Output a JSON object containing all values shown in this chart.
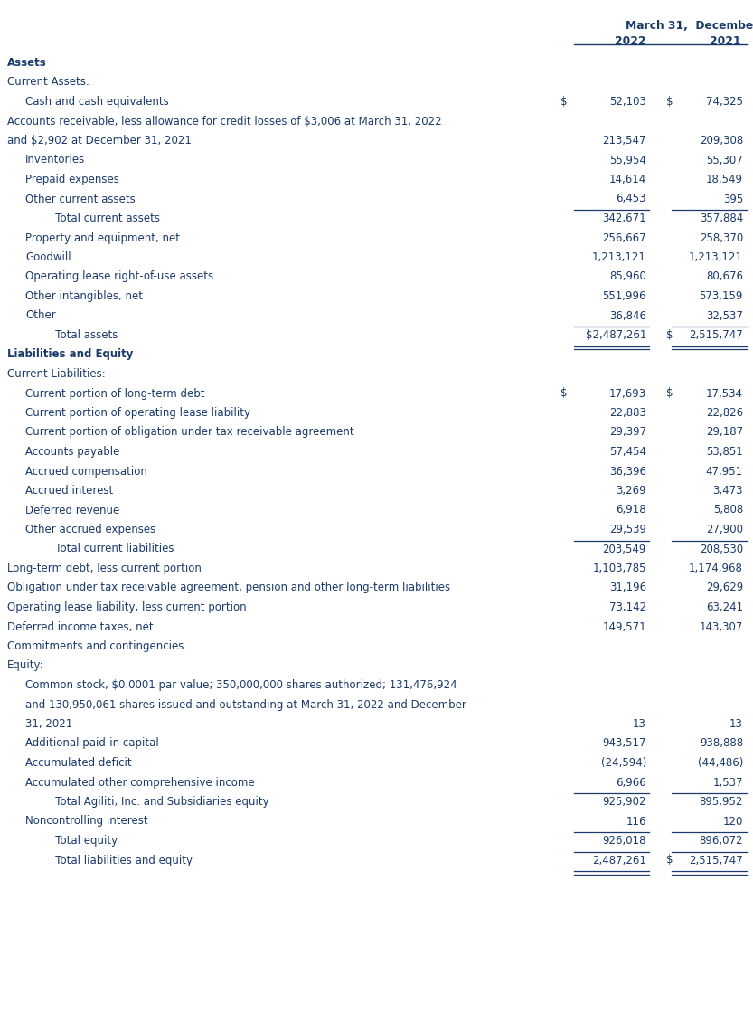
{
  "bg_color": "#ffffff",
  "text_color": "#1a3a6b",
  "font_family": "DejaVu Sans",
  "rows": [
    {
      "text": "Assets",
      "indent": 0,
      "bold": true,
      "val1": "",
      "val2": "",
      "dollar1": false,
      "dollar2": false,
      "underline": false,
      "double_underline": false
    },
    {
      "text": "Current Assets:",
      "indent": 0,
      "bold": false,
      "val1": "",
      "val2": "",
      "dollar1": false,
      "dollar2": false,
      "underline": false,
      "double_underline": false
    },
    {
      "text": "Cash and cash equivalents",
      "indent": 1,
      "bold": false,
      "val1": "52,103",
      "val2": "74,325",
      "dollar1": true,
      "dollar2": true,
      "underline": false,
      "double_underline": false
    },
    {
      "text": "Accounts receivable, less allowance for credit losses of $3,006 at March 31, 2022",
      "indent": 0,
      "bold": false,
      "val1": "",
      "val2": "",
      "dollar1": false,
      "dollar2": false,
      "underline": false,
      "double_underline": false
    },
    {
      "text": "and $2,902 at December 31, 2021",
      "indent": 0,
      "bold": false,
      "val1": "213,547",
      "val2": "209,308",
      "dollar1": false,
      "dollar2": false,
      "underline": false,
      "double_underline": false
    },
    {
      "text": "Inventories",
      "indent": 1,
      "bold": false,
      "val1": "55,954",
      "val2": "55,307",
      "dollar1": false,
      "dollar2": false,
      "underline": false,
      "double_underline": false
    },
    {
      "text": "Prepaid expenses",
      "indent": 1,
      "bold": false,
      "val1": "14,614",
      "val2": "18,549",
      "dollar1": false,
      "dollar2": false,
      "underline": false,
      "double_underline": false
    },
    {
      "text": "Other current assets",
      "indent": 1,
      "bold": false,
      "val1": "6,453",
      "val2": "395",
      "dollar1": false,
      "dollar2": false,
      "underline": true,
      "double_underline": false
    },
    {
      "text": "   Total current assets",
      "indent": 2,
      "bold": false,
      "val1": "342,671",
      "val2": "357,884",
      "dollar1": false,
      "dollar2": false,
      "underline": false,
      "double_underline": false
    },
    {
      "text": "Property and equipment, net",
      "indent": 1,
      "bold": false,
      "val1": "256,667",
      "val2": "258,370",
      "dollar1": false,
      "dollar2": false,
      "underline": false,
      "double_underline": false
    },
    {
      "text": "Goodwill",
      "indent": 1,
      "bold": false,
      "val1": "1,213,121",
      "val2": "1,213,121",
      "dollar1": false,
      "dollar2": false,
      "underline": false,
      "double_underline": false
    },
    {
      "text": "Operating lease right-of-use assets",
      "indent": 1,
      "bold": false,
      "val1": "85,960",
      "val2": "80,676",
      "dollar1": false,
      "dollar2": false,
      "underline": false,
      "double_underline": false
    },
    {
      "text": "Other intangibles, net",
      "indent": 1,
      "bold": false,
      "val1": "551,996",
      "val2": "573,159",
      "dollar1": false,
      "dollar2": false,
      "underline": false,
      "double_underline": false
    },
    {
      "text": "Other",
      "indent": 1,
      "bold": false,
      "val1": "36,846",
      "val2": "32,537",
      "dollar1": false,
      "dollar2": false,
      "underline": true,
      "double_underline": false
    },
    {
      "text": "   Total assets",
      "indent": 2,
      "bold": false,
      "val1": "$2,487,261",
      "val2": "2,515,747",
      "dollar1": false,
      "dollar2": true,
      "underline": false,
      "double_underline": true
    },
    {
      "text": "Liabilities and Equity",
      "indent": 0,
      "bold": true,
      "val1": "",
      "val2": "",
      "dollar1": false,
      "dollar2": false,
      "underline": false,
      "double_underline": false
    },
    {
      "text": "Current Liabilities:",
      "indent": 0,
      "bold": false,
      "val1": "",
      "val2": "",
      "dollar1": false,
      "dollar2": false,
      "underline": false,
      "double_underline": false
    },
    {
      "text": "Current portion of long-term debt",
      "indent": 1,
      "bold": false,
      "val1": "17,693",
      "val2": "17,534",
      "dollar1": true,
      "dollar2": true,
      "underline": false,
      "double_underline": false
    },
    {
      "text": "Current portion of operating lease liability",
      "indent": 1,
      "bold": false,
      "val1": "22,883",
      "val2": "22,826",
      "dollar1": false,
      "dollar2": false,
      "underline": false,
      "double_underline": false
    },
    {
      "text": "Current portion of obligation under tax receivable agreement",
      "indent": 1,
      "bold": false,
      "val1": "29,397",
      "val2": "29,187",
      "dollar1": false,
      "dollar2": false,
      "underline": false,
      "double_underline": false
    },
    {
      "text": "Accounts payable",
      "indent": 1,
      "bold": false,
      "val1": "57,454",
      "val2": "53,851",
      "dollar1": false,
      "dollar2": false,
      "underline": false,
      "double_underline": false
    },
    {
      "text": "Accrued compensation",
      "indent": 1,
      "bold": false,
      "val1": "36,396",
      "val2": "47,951",
      "dollar1": false,
      "dollar2": false,
      "underline": false,
      "double_underline": false
    },
    {
      "text": "Accrued interest",
      "indent": 1,
      "bold": false,
      "val1": "3,269",
      "val2": "3,473",
      "dollar1": false,
      "dollar2": false,
      "underline": false,
      "double_underline": false
    },
    {
      "text": "Deferred revenue",
      "indent": 1,
      "bold": false,
      "val1": "6,918",
      "val2": "5,808",
      "dollar1": false,
      "dollar2": false,
      "underline": false,
      "double_underline": false
    },
    {
      "text": "Other accrued expenses",
      "indent": 1,
      "bold": false,
      "val1": "29,539",
      "val2": "27,900",
      "dollar1": false,
      "dollar2": false,
      "underline": true,
      "double_underline": false
    },
    {
      "text": "   Total current liabilities",
      "indent": 2,
      "bold": false,
      "val1": "203,549",
      "val2": "208,530",
      "dollar1": false,
      "dollar2": false,
      "underline": false,
      "double_underline": false
    },
    {
      "text": "Long-term debt, less current portion",
      "indent": 0,
      "bold": false,
      "val1": "1,103,785",
      "val2": "1,174,968",
      "dollar1": false,
      "dollar2": false,
      "underline": false,
      "double_underline": false
    },
    {
      "text": "Obligation under tax receivable agreement, pension and other long-term liabilities",
      "indent": 0,
      "bold": false,
      "val1": "31,196",
      "val2": "29,629",
      "dollar1": false,
      "dollar2": false,
      "underline": false,
      "double_underline": false
    },
    {
      "text": "Operating lease liability, less current portion",
      "indent": 0,
      "bold": false,
      "val1": "73,142",
      "val2": "63,241",
      "dollar1": false,
      "dollar2": false,
      "underline": false,
      "double_underline": false
    },
    {
      "text": "Deferred income taxes, net",
      "indent": 0,
      "bold": false,
      "val1": "149,571",
      "val2": "143,307",
      "dollar1": false,
      "dollar2": false,
      "underline": false,
      "double_underline": false
    },
    {
      "text": "Commitments and contingencies",
      "indent": 0,
      "bold": false,
      "val1": "",
      "val2": "",
      "dollar1": false,
      "dollar2": false,
      "underline": false,
      "double_underline": false
    },
    {
      "text": "Equity:",
      "indent": 0,
      "bold": false,
      "val1": "",
      "val2": "",
      "dollar1": false,
      "dollar2": false,
      "underline": false,
      "double_underline": false
    },
    {
      "text": "Common stock, $0.0001 par value; 350,000,000 shares authorized; 131,476,924",
      "indent": 1,
      "bold": false,
      "val1": "",
      "val2": "",
      "dollar1": false,
      "dollar2": false,
      "underline": false,
      "double_underline": false
    },
    {
      "text": "and 130,950,061 shares issued and outstanding at March 31, 2022 and December",
      "indent": 1,
      "bold": false,
      "val1": "",
      "val2": "",
      "dollar1": false,
      "dollar2": false,
      "underline": false,
      "double_underline": false
    },
    {
      "text": "31, 2021",
      "indent": 1,
      "bold": false,
      "val1": "13",
      "val2": "13",
      "dollar1": false,
      "dollar2": false,
      "underline": false,
      "double_underline": false
    },
    {
      "text": "Additional paid-in capital",
      "indent": 1,
      "bold": false,
      "val1": "943,517",
      "val2": "938,888",
      "dollar1": false,
      "dollar2": false,
      "underline": false,
      "double_underline": false
    },
    {
      "text": "Accumulated deficit",
      "indent": 1,
      "bold": false,
      "val1": "(24,594)",
      "val2": "(44,486)",
      "dollar1": false,
      "dollar2": false,
      "underline": false,
      "double_underline": false
    },
    {
      "text": "Accumulated other comprehensive income",
      "indent": 1,
      "bold": false,
      "val1": "6,966",
      "val2": "1,537",
      "dollar1": false,
      "dollar2": false,
      "underline": true,
      "double_underline": false
    },
    {
      "text": "   Total Agiliti, Inc. and Subsidiaries equity",
      "indent": 2,
      "bold": false,
      "val1": "925,902",
      "val2": "895,952",
      "dollar1": false,
      "dollar2": false,
      "underline": false,
      "double_underline": false
    },
    {
      "text": "Noncontrolling interest",
      "indent": 1,
      "bold": false,
      "val1": "116",
      "val2": "120",
      "dollar1": false,
      "dollar2": false,
      "underline": true,
      "double_underline": false
    },
    {
      "text": "   Total equity",
      "indent": 2,
      "bold": false,
      "val1": "926,018",
      "val2": "896,072",
      "dollar1": false,
      "dollar2": false,
      "underline": true,
      "double_underline": false
    },
    {
      "text": "   Total liabilities and equity",
      "indent": 2,
      "bold": false,
      "val1": "2,487,261",
      "val2": "2,515,747",
      "dollar1": false,
      "dollar2": true,
      "underline": false,
      "double_underline": true
    }
  ]
}
